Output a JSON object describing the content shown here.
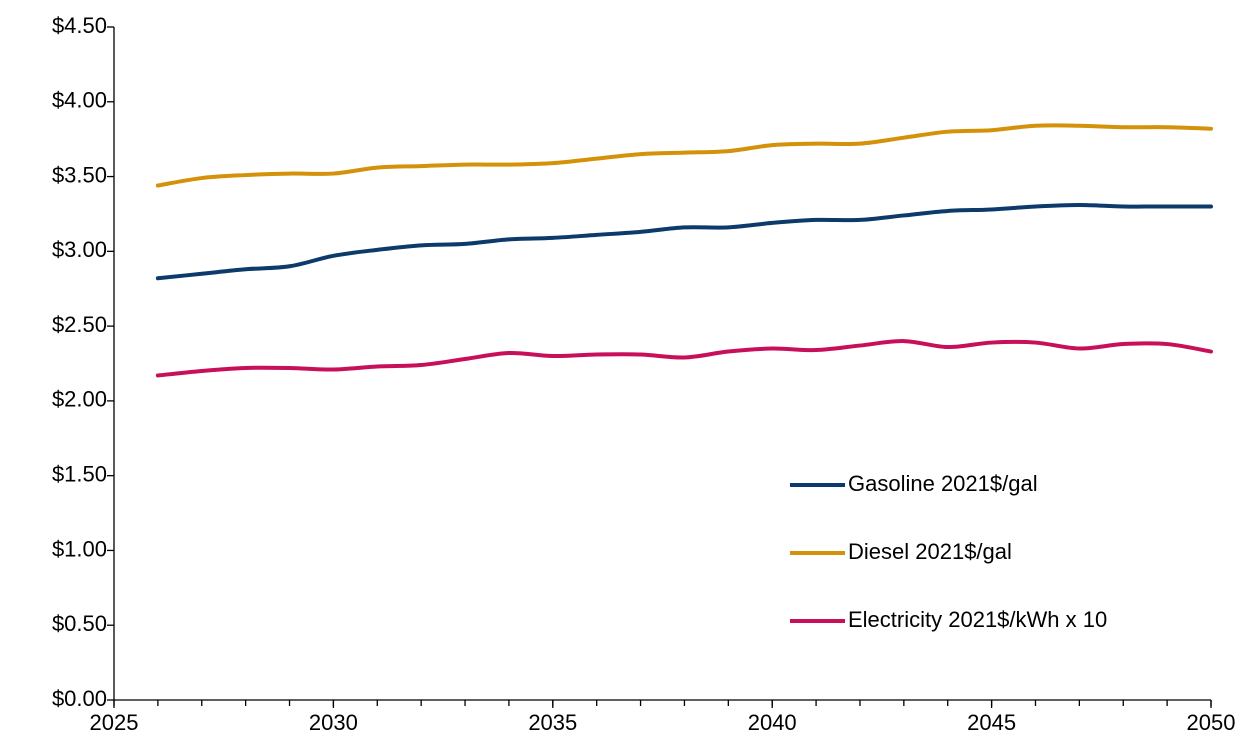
{
  "chart_data": {
    "type": "line",
    "x": [
      2026,
      2027,
      2028,
      2029,
      2030,
      2031,
      2032,
      2033,
      2034,
      2035,
      2036,
      2037,
      2038,
      2039,
      2040,
      2041,
      2042,
      2043,
      2044,
      2045,
      2046,
      2047,
      2048,
      2049,
      2050
    ],
    "series": [
      {
        "name": "Gasoline 2021$/gal",
        "color": "#0b3a6b",
        "values": [
          2.82,
          2.85,
          2.88,
          2.9,
          2.97,
          3.01,
          3.04,
          3.05,
          3.08,
          3.09,
          3.11,
          3.13,
          3.16,
          3.16,
          3.19,
          3.21,
          3.21,
          3.24,
          3.27,
          3.28,
          3.3,
          3.31,
          3.3,
          3.3,
          3.3
        ]
      },
      {
        "name": "Diesel 2021$/gal",
        "color": "#d4910a",
        "values": [
          3.44,
          3.49,
          3.51,
          3.52,
          3.52,
          3.56,
          3.57,
          3.58,
          3.58,
          3.59,
          3.62,
          3.65,
          3.66,
          3.67,
          3.71,
          3.72,
          3.72,
          3.76,
          3.8,
          3.81,
          3.84,
          3.84,
          3.83,
          3.83,
          3.82
        ]
      },
      {
        "name": "Electricity 2021$/kWh x 10",
        "color": "#c8105a",
        "values": [
          2.17,
          2.2,
          2.22,
          2.22,
          2.21,
          2.23,
          2.24,
          2.28,
          2.32,
          2.3,
          2.31,
          2.31,
          2.29,
          2.33,
          2.35,
          2.34,
          2.37,
          2.4,
          2.36,
          2.39,
          2.39,
          2.35,
          2.38,
          2.38,
          2.33
        ]
      }
    ],
    "xlim": [
      2025,
      2050
    ],
    "xticks": [
      2025,
      2030,
      2035,
      2040,
      2045,
      2050
    ],
    "xminorticks": [
      2025,
      2026,
      2027,
      2028,
      2029,
      2030,
      2031,
      2032,
      2033,
      2034,
      2035,
      2036,
      2037,
      2038,
      2039,
      2040,
      2041,
      2042,
      2043,
      2044,
      2045,
      2046,
      2047,
      2048,
      2049,
      2050
    ],
    "ylim": [
      0,
      4.5
    ],
    "yticks": [
      {
        "value": 0,
        "label": "$0.00"
      },
      {
        "value": 0.5,
        "label": "$0.50"
      },
      {
        "value": 1,
        "label": "$1.00"
      },
      {
        "value": 1.5,
        "label": "$1.50"
      },
      {
        "value": 2,
        "label": "$2.00"
      },
      {
        "value": 2.5,
        "label": "$2.50"
      },
      {
        "value": 3,
        "label": "$3.00"
      },
      {
        "value": 3.5,
        "label": "$3.50"
      },
      {
        "value": 4,
        "label": "$4.00"
      },
      {
        "value": 4.5,
        "label": "$4.50"
      }
    ],
    "grid": false,
    "legend": "lower right"
  }
}
